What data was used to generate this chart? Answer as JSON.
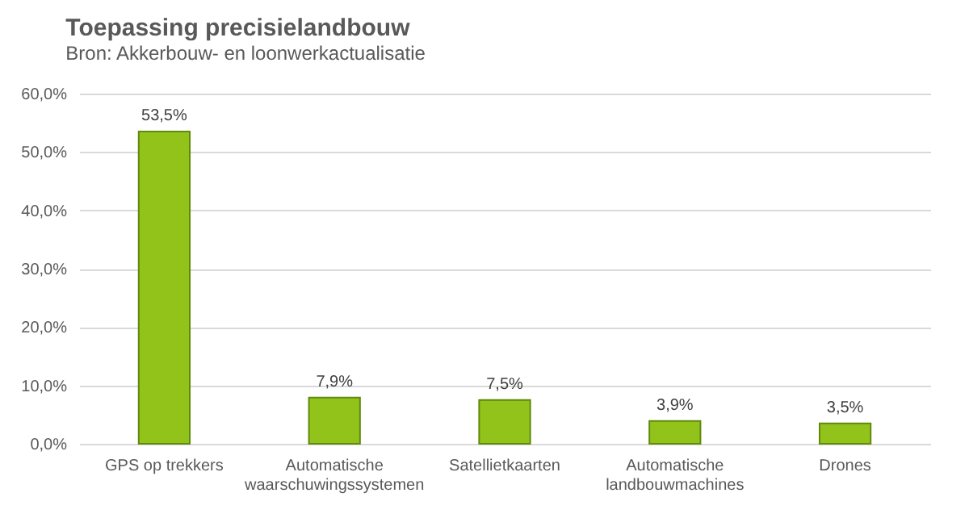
{
  "chart_data": {
    "type": "bar",
    "title": "Toepassing precisielandbouw",
    "subtitle": "Bron: Akkerbouw- en loonwerkactualisatie",
    "categories": [
      "GPS op trekkers",
      "Automatische waarschuwingssystemen",
      "Satellietkaarten",
      "Automatische landbouwmachines",
      "Drones"
    ],
    "values": [
      53.5,
      7.9,
      7.5,
      3.9,
      3.5
    ],
    "value_labels": [
      "53,5%",
      "7,9%",
      "7,5%",
      "3,9%",
      "3,5%"
    ],
    "color": "#92c31a",
    "ylim": [
      0,
      60
    ],
    "yticks": [
      {
        "value": 0,
        "label": "0,0%"
      },
      {
        "value": 10,
        "label": "10,0%"
      },
      {
        "value": 20,
        "label": "20,0%"
      },
      {
        "value": 30,
        "label": "30,0%"
      },
      {
        "value": 40,
        "label": "40,0%"
      },
      {
        "value": 50,
        "label": "50,0%"
      },
      {
        "value": 60,
        "label": "60,0%"
      }
    ],
    "grid": "y"
  }
}
